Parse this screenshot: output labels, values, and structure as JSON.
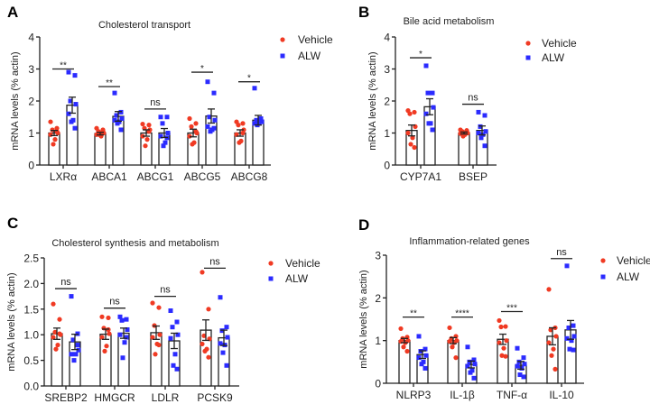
{
  "colors": {
    "vehicle": "#f03a23",
    "alw": "#2b2bff",
    "axis": "#222222"
  },
  "legend": {
    "vehicle": "Vehicle",
    "alw": "ALW"
  },
  "chart_data": [
    {
      "panel": "A",
      "type": "bar",
      "title": "Cholesterol transport",
      "ylabel": "mRNA levels (% actin)",
      "ylim": [
        0,
        4
      ],
      "yticks": [
        "0",
        "1",
        "2",
        "3",
        "4"
      ],
      "categories": [
        "LXRα",
        "ABCA1",
        "ABCG1",
        "ABCG5",
        "ABCG8"
      ],
      "series": [
        {
          "name": "Vehicle",
          "mean": [
            1.0,
            0.98,
            1.0,
            1.0,
            1.0
          ],
          "sem": [
            0.08,
            0.04,
            0.1,
            0.12,
            0.1
          ],
          "points": [
            [
              1.35,
              1.15,
              1.1,
              1.0,
              0.95,
              0.8,
              0.65,
              1.05
            ],
            [
              1.15,
              1.1,
              1.05,
              1.0,
              0.95,
              0.9,
              0.95,
              1.05
            ],
            [
              1.28,
              1.25,
              1.15,
              1.1,
              0.9,
              0.8,
              0.6,
              1.05
            ],
            [
              1.45,
              1.3,
              1.2,
              1.0,
              0.9,
              0.7,
              0.65,
              1.05
            ],
            [
              1.35,
              1.3,
              1.25,
              1.1,
              0.95,
              0.75,
              0.7,
              1.0
            ]
          ]
        },
        {
          "name": "ALW",
          "mean": [
            1.87,
            1.52,
            1.0,
            1.53,
            1.4
          ],
          "sem": [
            0.25,
            0.15,
            0.14,
            0.22,
            0.15
          ],
          "points": [
            [
              2.9,
              2.8,
              2.0,
              1.9,
              1.6,
              1.4,
              1.35,
              1.15
            ],
            [
              2.25,
              1.65,
              1.55,
              1.45,
              1.4,
              1.35,
              1.3,
              1.1
            ],
            [
              1.5,
              1.5,
              1.3,
              1.0,
              0.9,
              0.7,
              0.6,
              0.85
            ],
            [
              2.6,
              2.25,
              1.5,
              1.4,
              1.2,
              1.1,
              1.05,
              1.15
            ],
            [
              2.4,
              1.45,
              1.4,
              1.35,
              1.3,
              1.3,
              1.25,
              1.35
            ]
          ]
        }
      ],
      "significance": [
        {
          "label": "**",
          "y": 3.0
        },
        {
          "label": "**",
          "y": 2.45
        },
        {
          "label": "ns",
          "y": 1.75
        },
        {
          "label": "*",
          "y": 2.9
        },
        {
          "label": "*",
          "y": 2.6
        }
      ]
    },
    {
      "panel": "B",
      "type": "bar",
      "title": "Bile acid metabolism",
      "ylabel": "mRNA levels (% actin)",
      "ylim": [
        0,
        4
      ],
      "yticks": [
        "0",
        "1",
        "2",
        "3",
        "4"
      ],
      "categories": [
        "CYP7A1",
        "BSEP"
      ],
      "series": [
        {
          "name": "Vehicle",
          "mean": [
            1.08,
            1.0
          ],
          "sem": [
            0.17,
            0.03
          ],
          "points": [
            [
              1.7,
              1.65,
              1.6,
              1.2,
              1.0,
              0.85,
              0.65,
              0.55
            ],
            [
              1.1,
              1.08,
              1.05,
              1.0,
              0.98,
              0.95,
              0.9,
              1.02
            ]
          ]
        },
        {
          "name": "ALW",
          "mean": [
            1.82,
            1.08
          ],
          "sem": [
            0.25,
            0.14
          ],
          "points": [
            [
              3.1,
              2.25,
              2.25,
              1.8,
              1.6,
              1.3,
              1.3,
              1.1
            ],
            [
              1.65,
              1.55,
              1.2,
              1.05,
              1.0,
              0.95,
              0.85,
              0.6
            ]
          ]
        }
      ],
      "significance": [
        {
          "label": "*",
          "y": 3.35
        },
        {
          "label": "ns",
          "y": 1.9
        }
      ]
    },
    {
      "panel": "C",
      "type": "bar",
      "title": "Cholesterol synthesis and metabolism",
      "ylabel": "mRNA levels (% actin)",
      "ylim": [
        0,
        2.5
      ],
      "yticks": [
        "0.0",
        "0.5",
        "1.0",
        "1.5",
        "2.0",
        "2.5"
      ],
      "categories": [
        "SREBP2",
        "HMGCR",
        "LDLR",
        "PCSK9"
      ],
      "series": [
        {
          "name": "Vehicle",
          "mean": [
            1.02,
            1.01,
            1.04,
            1.09
          ],
          "sem": [
            0.11,
            0.1,
            0.13,
            0.2
          ],
          "points": [
            [
              1.6,
              1.3,
              1.05,
              1.0,
              0.95,
              0.8,
              0.72,
              1.02
            ],
            [
              1.35,
              1.33,
              1.13,
              1.02,
              0.95,
              0.78,
              0.68,
              1.1
            ],
            [
              1.62,
              1.53,
              1.18,
              1.0,
              0.95,
              0.82,
              0.62,
              0.8
            ],
            [
              2.22,
              1.5,
              0.98,
              0.92,
              0.82,
              0.72,
              0.68,
              0.56
            ]
          ]
        },
        {
          "name": "ALW",
          "mean": [
            0.86,
            1.03,
            0.88,
            0.94
          ],
          "sem": [
            0.15,
            0.1,
            0.15,
            0.15
          ],
          "points": [
            [
              1.75,
              1.02,
              0.9,
              0.7,
              0.62,
              0.62,
              0.5,
              0.8
            ],
            [
              1.35,
              1.3,
              1.28,
              1.1,
              1.0,
              0.85,
              0.55,
              0.95
            ],
            [
              1.47,
              1.25,
              1.15,
              1.0,
              0.93,
              0.62,
              0.4,
              0.33
            ],
            [
              1.73,
              1.15,
              1.08,
              0.95,
              0.83,
              0.8,
              0.65,
              0.4
            ]
          ]
        }
      ],
      "significance": [
        {
          "label": "ns",
          "y": 1.9
        },
        {
          "label": "ns",
          "y": 1.52
        },
        {
          "label": "ns",
          "y": 1.75
        },
        {
          "label": "ns",
          "y": 2.3
        }
      ]
    },
    {
      "panel": "D",
      "type": "bar",
      "title": "Inflammation-related genes",
      "ylabel": "mRNA levels (% actin)",
      "ylim": [
        0,
        3
      ],
      "yticks": [
        "0",
        "1",
        "2",
        "3"
      ],
      "categories": [
        "NLRP3",
        "IL-1β",
        "TNF-α",
        "IL-10"
      ],
      "series": [
        {
          "name": "Vehicle",
          "mean": [
            1.0,
            1.0,
            1.03,
            1.1
          ],
          "sem": [
            0.05,
            0.07,
            0.12,
            0.2
          ],
          "points": [
            [
              1.28,
              1.08,
              1.05,
              1.0,
              0.98,
              0.95,
              0.85,
              0.75
            ],
            [
              1.3,
              1.1,
              1.05,
              1.0,
              0.98,
              0.95,
              0.85,
              0.6
            ],
            [
              1.47,
              1.33,
              1.32,
              1.0,
              0.95,
              0.82,
              0.65,
              0.63
            ],
            [
              2.2,
              1.3,
              1.25,
              1.1,
              0.95,
              0.8,
              0.65,
              0.33
            ]
          ]
        },
        {
          "name": "ALW",
          "mean": [
            0.67,
            0.44,
            0.42,
            1.25
          ],
          "sem": [
            0.09,
            0.08,
            0.09,
            0.22
          ],
          "points": [
            [
              1.1,
              0.8,
              0.75,
              0.65,
              0.6,
              0.5,
              0.45,
              0.35
            ],
            [
              0.85,
              0.55,
              0.5,
              0.45,
              0.4,
              0.3,
              0.25,
              0.12
            ],
            [
              0.82,
              0.6,
              0.5,
              0.45,
              0.4,
              0.35,
              0.2,
              0.15
            ],
            [
              2.75,
              1.35,
              1.3,
              1.1,
              1.05,
              1.0,
              0.8,
              0.78
            ]
          ]
        }
      ],
      "significance": [
        {
          "label": "**",
          "y": 1.55
        },
        {
          "label": "****",
          "y": 1.55
        },
        {
          "label": "***",
          "y": 1.68
        },
        {
          "label": "ns",
          "y": 2.92
        }
      ]
    }
  ]
}
